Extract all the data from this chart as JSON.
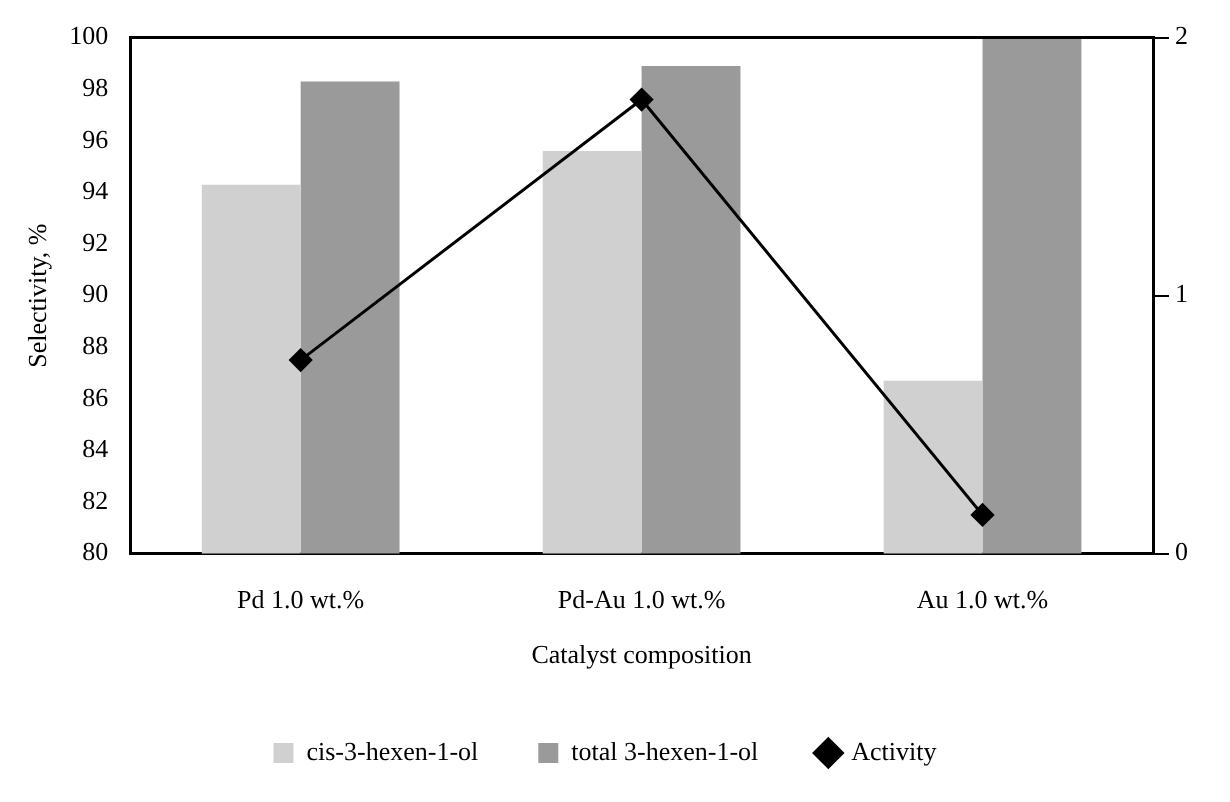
{
  "chart_data": {
    "type": "bar",
    "xlabel": "Catalyst composition",
    "ylabel": "Selectivity, %",
    "categories": [
      "Pd 1.0 wt.%",
      "Pd-Au 1.0 wt.%",
      "Au 1.0 wt.%"
    ],
    "series": [
      {
        "name": "cis-3-hexen-1-ol",
        "color": "#d0d0d0",
        "values": [
          94.3,
          95.6,
          86.7
        ]
      },
      {
        "name": "total 3-hexen-1-ol",
        "color": "#9a9a9a",
        "values": [
          98.3,
          98.9,
          100
        ]
      },
      {
        "name": "Activity",
        "type": "line",
        "axis": "y2",
        "color": "#000000",
        "values": [
          0.75,
          1.76,
          0.15
        ]
      }
    ],
    "ylim": [
      80,
      100
    ],
    "yticks": [
      80,
      82,
      84,
      86,
      88,
      90,
      92,
      94,
      96,
      98,
      100
    ],
    "y2lim": [
      0,
      2
    ],
    "y2ticks": [
      0,
      1,
      2
    ],
    "grid": false,
    "legend": "bottom",
    "marker": "diamond",
    "line_style": "solid"
  }
}
